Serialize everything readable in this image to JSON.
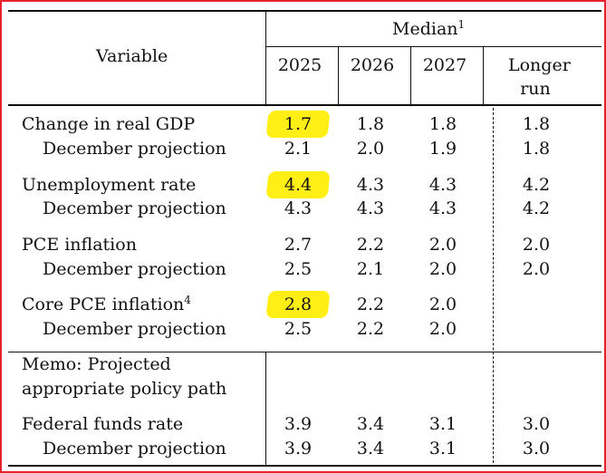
{
  "header": {
    "variable": "Variable",
    "median": "Median",
    "median_note": "1",
    "columns": [
      "2025",
      "2026",
      "2027"
    ],
    "longer_run_line1": "Longer",
    "longer_run_line2": "run"
  },
  "rows": [
    {
      "label": "Change in real GDP",
      "note": "",
      "values": [
        "1.7",
        "1.8",
        "1.8",
        "1.8"
      ],
      "highlight_first": true
    },
    {
      "label": "December projection",
      "note": "",
      "values": [
        "2.1",
        "2.0",
        "1.9",
        "1.8"
      ],
      "highlight_first": false
    },
    {
      "label": "Unemployment rate",
      "note": "",
      "values": [
        "4.4",
        "4.3",
        "4.3",
        "4.2"
      ],
      "highlight_first": true
    },
    {
      "label": "December projection",
      "note": "",
      "values": [
        "4.3",
        "4.3",
        "4.3",
        "4.2"
      ],
      "highlight_first": false
    },
    {
      "label": "PCE inflation",
      "note": "",
      "values": [
        "2.7",
        "2.2",
        "2.0",
        "2.0"
      ],
      "highlight_first": false
    },
    {
      "label": "December projection",
      "note": "",
      "values": [
        "2.5",
        "2.1",
        "2.0",
        "2.0"
      ],
      "highlight_first": false
    },
    {
      "label": "Core PCE inflation",
      "note": "4",
      "values": [
        "2.8",
        "2.2",
        "2.0",
        ""
      ],
      "highlight_first": true
    },
    {
      "label": "December projection",
      "note": "",
      "values": [
        "2.5",
        "2.2",
        "2.0",
        ""
      ],
      "highlight_first": false
    }
  ],
  "memo": {
    "line1": "Memo: Projected",
    "line2": "appropriate policy path"
  },
  "memo_rows": [
    {
      "label": "Federal funds rate",
      "values": [
        "3.9",
        "3.4",
        "3.1",
        "3.0"
      ]
    },
    {
      "label": "December projection",
      "values": [
        "3.9",
        "3.4",
        "3.1",
        "3.0"
      ]
    }
  ],
  "colors": {
    "frame": "#e8222c",
    "highlight": "#ffee00",
    "text": "#111111"
  }
}
